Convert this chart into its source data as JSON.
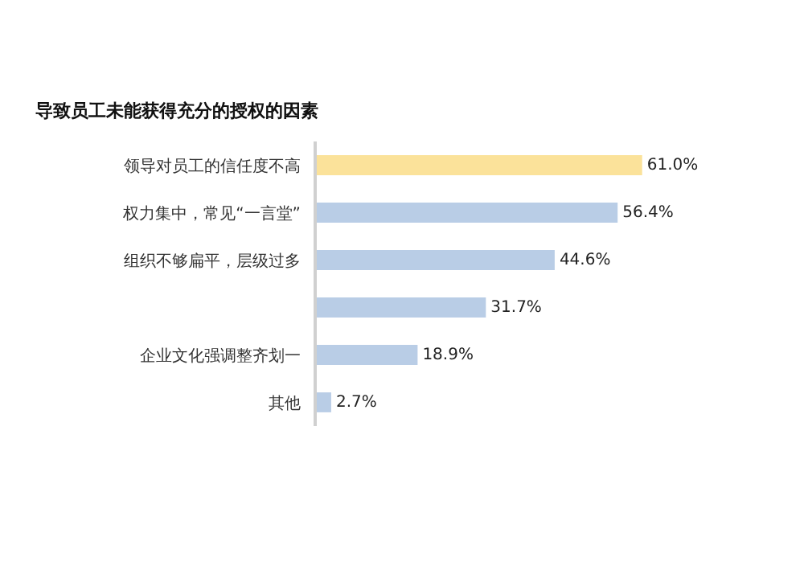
{
  "chart_data": {
    "type": "bar",
    "orientation": "horizontal",
    "title": "导致员工未能获得充分的授权的因素",
    "categories": [
      "领导对员工的信任度不高",
      "权力集中，常见“一言堂”",
      "组织不够扁平，层级过多",
      null,
      "企业文化强调整齐划一",
      "其他"
    ],
    "values": [
      61.0,
      56.4,
      44.6,
      31.7,
      18.9,
      2.7
    ],
    "value_labels": [
      "61.0%",
      "56.4%",
      "44.6%",
      "31.7%",
      "18.9%",
      "2.7%"
    ],
    "colors": [
      "#fbe29a",
      "#b9cde6",
      "#b9cde6",
      "#b9cde6",
      "#b9cde6",
      "#b9cde6"
    ],
    "grid": false,
    "tick_labels": "y"
  }
}
